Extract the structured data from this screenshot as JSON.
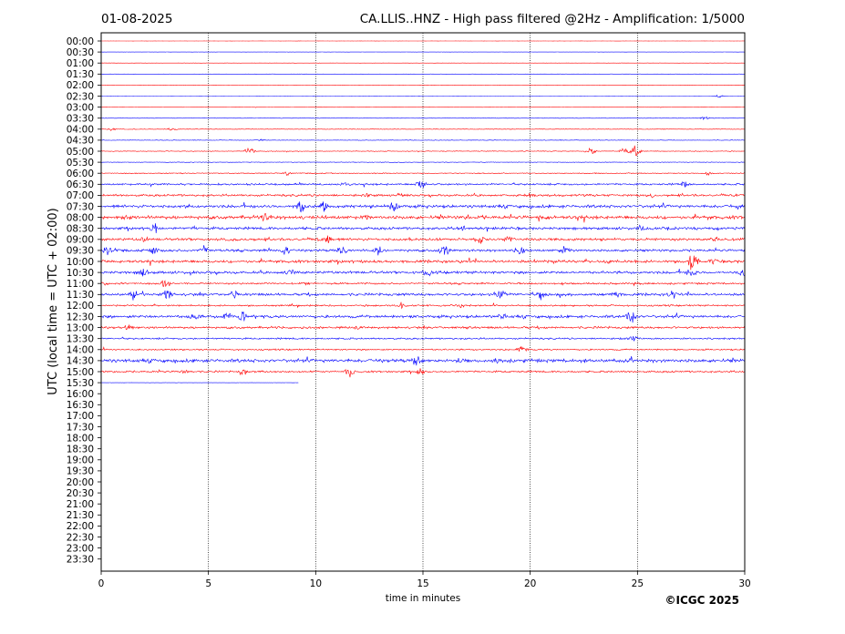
{
  "header": {
    "date": "01-08-2025",
    "title": "CA.LLIS..HNZ - High pass filtered @2Hz - Amplification: 1/5000"
  },
  "copyright": "©ICGC 2025",
  "chart_data": {
    "type": "line",
    "title": "CA.LLIS..HNZ - High pass filtered @2Hz - Amplification: 1/5000",
    "date": "01-08-2025",
    "xlabel": "time in minutes",
    "ylabel": "UTC (local time = UTC + 02:00)",
    "xlim": [
      0,
      30
    ],
    "xticks": [
      "0",
      "5",
      "10",
      "15",
      "20",
      "25",
      "30"
    ],
    "xtick_values": [
      0,
      5,
      10,
      15,
      20,
      25,
      30
    ],
    "vertical_gridlines_at": [
      5,
      10,
      15,
      20,
      25
    ],
    "grid": "dotted vertical at each 5 minutes",
    "row_labels": [
      "00:00",
      "00:30",
      "01:00",
      "01:30",
      "02:00",
      "02:30",
      "03:00",
      "03:30",
      "04:00",
      "04:30",
      "05:00",
      "05:30",
      "06:00",
      "06:30",
      "07:00",
      "07:30",
      "08:00",
      "08:30",
      "09:00",
      "09:30",
      "10:00",
      "10:30",
      "11:00",
      "11:30",
      "12:00",
      "12:30",
      "13:00",
      "13:30",
      "14:00",
      "14:30",
      "15:00",
      "15:30",
      "16:00",
      "16:30",
      "17:00",
      "17:30",
      "18:00",
      "18:30",
      "19:00",
      "19:30",
      "20:00",
      "20:30",
      "21:00",
      "21:30",
      "22:00",
      "22:30",
      "23:00",
      "23:30"
    ],
    "series_colors": {
      "even_rows": "#ff0000",
      "odd_rows": "#0000ff"
    },
    "partial_row": {
      "label": "15:30",
      "end_minute": 9.2
    },
    "traces": [
      {
        "row": "00:00",
        "activity": 0.1,
        "events": []
      },
      {
        "row": "00:30",
        "activity": 0.1,
        "events": []
      },
      {
        "row": "01:00",
        "activity": 0.1,
        "events": []
      },
      {
        "row": "01:30",
        "activity": 0.1,
        "events": []
      },
      {
        "row": "02:00",
        "activity": 0.1,
        "events": []
      },
      {
        "row": "02:30",
        "activity": 0.1,
        "events": [
          [
            28.8,
            2
          ]
        ]
      },
      {
        "row": "03:00",
        "activity": 0.2,
        "events": []
      },
      {
        "row": "03:30",
        "activity": 0.2,
        "events": [
          [
            28.1,
            2.5
          ]
        ]
      },
      {
        "row": "04:00",
        "activity": 0.3,
        "events": [
          [
            0.5,
            2
          ],
          [
            3.3,
            2
          ]
        ]
      },
      {
        "row": "04:30",
        "activity": 0.3,
        "events": [
          [
            7.4,
            2
          ]
        ]
      },
      {
        "row": "05:00",
        "activity": 0.4,
        "events": [
          [
            6.9,
            7
          ],
          [
            22.8,
            5
          ],
          [
            24.4,
            5
          ],
          [
            24.9,
            7
          ]
        ]
      },
      {
        "row": "05:30",
        "activity": 0.3,
        "events": []
      },
      {
        "row": "06:00",
        "activity": 0.5,
        "events": [
          [
            8.7,
            3
          ],
          [
            28.3,
            3
          ]
        ]
      },
      {
        "row": "06:30",
        "activity": 1.0,
        "events": [
          [
            11.3,
            3
          ],
          [
            14.9,
            7
          ],
          [
            27.2,
            4
          ]
        ]
      },
      {
        "row": "07:00",
        "activity": 1.2,
        "events": [
          [
            12.4,
            3
          ],
          [
            13.9,
            5
          ],
          [
            20.0,
            3
          ],
          [
            25.7,
            3
          ]
        ]
      },
      {
        "row": "07:30",
        "activity": 1.6,
        "events": [
          [
            4.1,
            4
          ],
          [
            9.3,
            8
          ],
          [
            10.4,
            8
          ],
          [
            13.6,
            8
          ],
          [
            29.7,
            4
          ]
        ]
      },
      {
        "row": "08:00",
        "activity": 1.8,
        "events": [
          [
            1.1,
            4
          ],
          [
            7.7,
            7
          ],
          [
            12.4,
            4
          ],
          [
            20.8,
            4
          ]
        ]
      },
      {
        "row": "08:30",
        "activity": 1.4,
        "events": [
          [
            2.5,
            8
          ],
          [
            16.8,
            5
          ],
          [
            25.2,
            6
          ]
        ]
      },
      {
        "row": "09:00",
        "activity": 1.4,
        "events": [
          [
            2.0,
            5
          ],
          [
            10.6,
            8
          ],
          [
            17.7,
            6
          ],
          [
            19.0,
            6
          ],
          [
            28.6,
            4
          ]
        ]
      },
      {
        "row": "09:30",
        "activity": 1.3,
        "events": [
          [
            0.3,
            6
          ],
          [
            2.5,
            8
          ],
          [
            4.8,
            7
          ],
          [
            8.6,
            6
          ],
          [
            11.2,
            8
          ],
          [
            12.9,
            9
          ],
          [
            16.0,
            9
          ],
          [
            19.5,
            8
          ],
          [
            21.6,
            6
          ]
        ]
      },
      {
        "row": "10:00",
        "activity": 1.5,
        "events": [
          [
            23.6,
            5
          ],
          [
            27.6,
            16
          ],
          [
            28.5,
            5
          ]
        ]
      },
      {
        "row": "10:30",
        "activity": 1.4,
        "events": [
          [
            2.0,
            6
          ],
          [
            8.8,
            5
          ],
          [
            15.2,
            6
          ],
          [
            27.5,
            8
          ],
          [
            29.9,
            6
          ]
        ]
      },
      {
        "row": "11:00",
        "activity": 1.0,
        "events": [
          [
            0.2,
            4
          ],
          [
            3.0,
            7
          ]
        ]
      },
      {
        "row": "11:30",
        "activity": 1.4,
        "events": [
          [
            1.5,
            7
          ],
          [
            3.1,
            9
          ],
          [
            6.2,
            5
          ],
          [
            18.6,
            7
          ],
          [
            20.5,
            8
          ],
          [
            24.0,
            7
          ],
          [
            26.6,
            8
          ]
        ]
      },
      {
        "row": "12:00",
        "activity": 0.9,
        "events": [
          [
            14.0,
            5
          ],
          [
            16.8,
            3
          ]
        ]
      },
      {
        "row": "12:30",
        "activity": 1.5,
        "events": [
          [
            4.3,
            7
          ],
          [
            5.9,
            7
          ],
          [
            6.6,
            8
          ],
          [
            18.7,
            5
          ],
          [
            24.7,
            9
          ]
        ]
      },
      {
        "row": "13:00",
        "activity": 1.2,
        "events": [
          [
            1.3,
            5
          ],
          [
            12.0,
            3
          ]
        ]
      },
      {
        "row": "13:30",
        "activity": 0.9,
        "events": [
          [
            24.8,
            4
          ]
        ]
      },
      {
        "row": "14:00",
        "activity": 0.8,
        "events": [
          [
            19.6,
            6
          ]
        ]
      },
      {
        "row": "14:30",
        "activity": 1.8,
        "events": [
          [
            14.7,
            9
          ],
          [
            16.7,
            5
          ],
          [
            18.5,
            4
          ]
        ]
      },
      {
        "row": "15:00",
        "activity": 1.0,
        "events": [
          [
            3.9,
            3
          ],
          [
            6.6,
            7
          ],
          [
            11.6,
            8
          ],
          [
            14.9,
            5
          ]
        ]
      },
      {
        "row": "15:30",
        "activity": 0.15,
        "events": []
      }
    ]
  }
}
